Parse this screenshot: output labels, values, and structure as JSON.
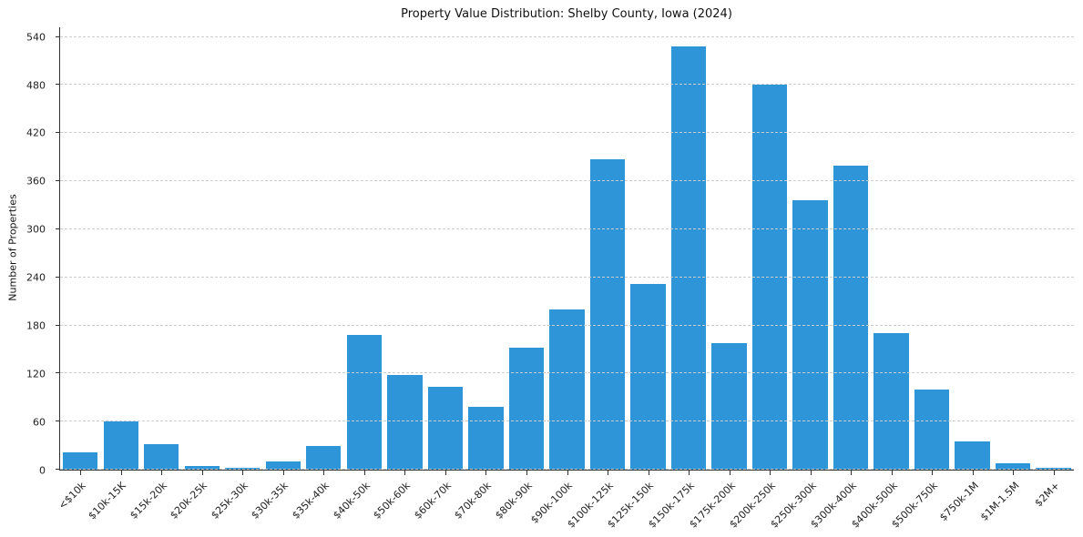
{
  "chart_data": {
    "type": "bar",
    "title": "Property Value Distribution: Shelby County, Iowa (2024)",
    "xlabel": "",
    "ylabel": "Number of Properties",
    "categories": [
      "<$10k",
      "$10k-15K",
      "$15k-20k",
      "$20k-25k",
      "$25k-30k",
      "$30k-35k",
      "$35k-40k",
      "$40k-50k",
      "$50k-60k",
      "$60k-70k",
      "$70k-80k",
      "$80k-90k",
      "$90k-100k",
      "$100k-125k",
      "$125k-150k",
      "$150k-175k",
      "$175k-200k",
      "$200k-250k",
      "$250k-300k",
      "$300k-400k",
      "$400k-500k",
      "$500k-750k",
      "$750k-1M",
      "$1M-1.5M",
      "$2M+"
    ],
    "values": [
      22,
      60,
      32,
      4,
      2,
      10,
      30,
      168,
      118,
      103,
      78,
      152,
      200,
      387,
      232,
      528,
      158,
      481,
      336,
      379,
      170,
      100,
      35,
      8,
      2
    ],
    "yticks": [
      0,
      60,
      120,
      180,
      240,
      300,
      360,
      420,
      480,
      540
    ],
    "ylim": [
      0,
      552
    ],
    "grid": "horizontal-dashed",
    "legend": "none",
    "colors": {
      "bar": "#2E96D8",
      "axis": "#333333",
      "gridline": "#cccccc"
    }
  }
}
